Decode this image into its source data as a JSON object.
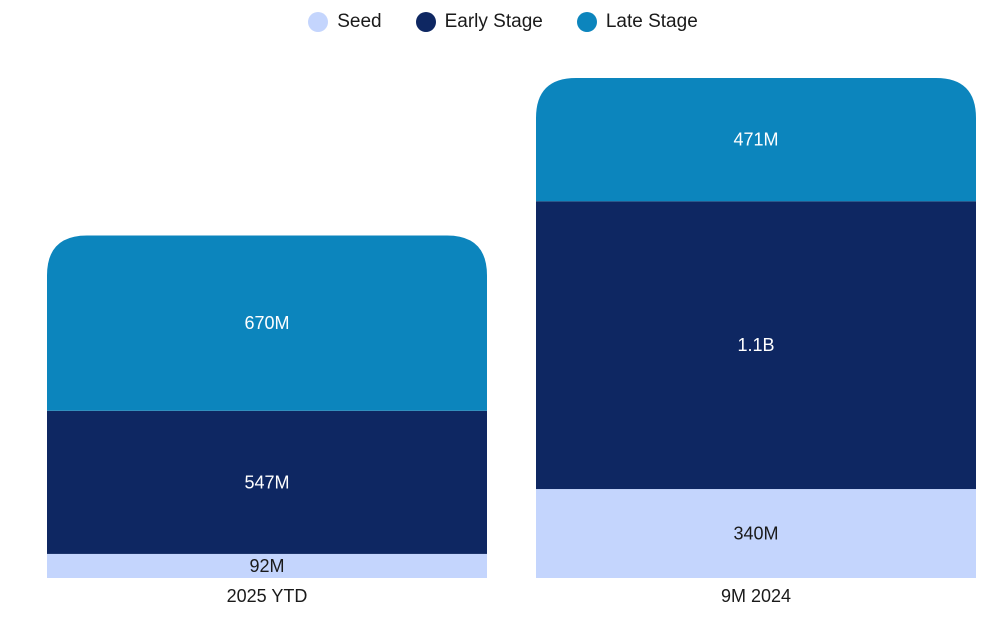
{
  "colors": {
    "seed": "#c4d5fd",
    "early": "#0e2762",
    "late": "#0c85bd",
    "label_dark": "#1a1a1a",
    "label_light": "#ffffff"
  },
  "chart_data": {
    "type": "bar",
    "stacked": true,
    "title": "",
    "xlabel": "",
    "ylabel": "",
    "grid": false,
    "legend_position": "top-center",
    "categories": [
      "2025 YTD",
      "9M 2024"
    ],
    "series": [
      {
        "name": "Seed",
        "key": "seed",
        "values": [
          92,
          340
        ],
        "labels": [
          "92M",
          "340M"
        ]
      },
      {
        "name": "Early Stage",
        "key": "early",
        "values": [
          547,
          1100
        ],
        "labels": [
          "547M",
          "1.1B"
        ]
      },
      {
        "name": "Late Stage",
        "key": "late",
        "values": [
          670,
          471
        ],
        "labels": [
          "670M",
          "471M"
        ]
      }
    ],
    "unit": "M",
    "ylim": [
      0,
      1911
    ]
  }
}
